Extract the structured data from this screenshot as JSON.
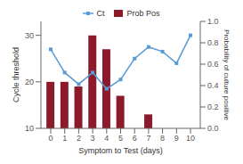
{
  "chart_data": {
    "type": "bar",
    "x": [
      0,
      1,
      2,
      3,
      4,
      5,
      6,
      7,
      8,
      9,
      10
    ],
    "xlim": [
      -0.7,
      10.7
    ],
    "xticks": [
      0,
      1,
      2,
      3,
      4,
      5,
      6,
      7,
      8,
      9,
      10
    ],
    "xlabel": "Symptom to Test (days)",
    "ylabel": "Cycle threshold",
    "y2label": "Probability of culture positive",
    "ylim": [
      10,
      33
    ],
    "yticks": [
      10,
      20,
      30
    ],
    "y2lim": [
      0.0,
      1.0
    ],
    "y2ticks": [
      {
        "value": 0.0,
        "label": "0.0"
      },
      0.2,
      0.4,
      0.6,
      0.8,
      {
        "value": 1.0,
        "label": "1.0"
      }
    ],
    "grid": false,
    "legend": "upper center",
    "series": [
      {
        "name": "Ct",
        "type": "line",
        "color": "#5B9BD5",
        "marker": "square",
        "values": [
          27,
          22,
          19.5,
          22,
          18.5,
          20.5,
          25,
          27.5,
          26.5,
          24,
          30
        ]
      },
      {
        "name": "Prob Pos",
        "type": "bar",
        "color": "#8B1A2A",
        "values": [
          20,
          20,
          19,
          30,
          27,
          17,
          null,
          13,
          null,
          null,
          null
        ]
      }
    ]
  }
}
